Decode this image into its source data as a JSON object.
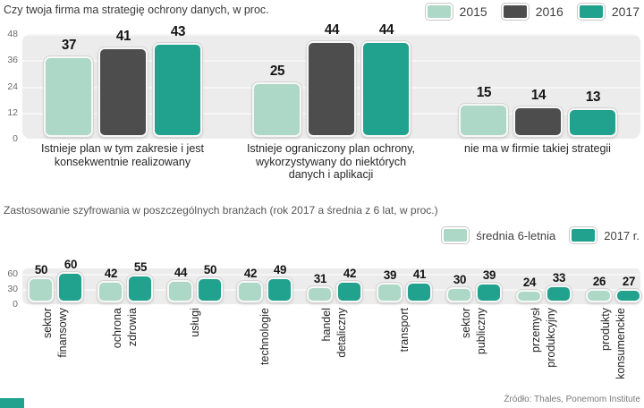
{
  "page": {
    "source": "Źródło: Thales, Ponemom Institute"
  },
  "colors": {
    "series_2015_avg": "#add8c7",
    "series_2016": "#4d4d4d",
    "series_2017": "#21a28e",
    "panel_background": "#ececec",
    "brand_mark": "#21a28e"
  },
  "chart_data": [
    {
      "type": "bar",
      "title": "Czy twoja firma ma strategię ochrony danych, w proc.",
      "categories": [
        "Istnieje plan w tym zakresie i jest\nkonsekwentnie realizowany",
        "Istnieje ograniczony plan ochrony,\nwykorzystywany do niektórych\ndanych i aplikacji",
        "nie ma w firmie takiej strategii"
      ],
      "series": [
        {
          "name": "2015",
          "color": "#add8c7",
          "values": [
            37,
            25,
            15
          ]
        },
        {
          "name": "2016",
          "color": "#4d4d4d",
          "values": [
            41,
            44,
            14
          ]
        },
        {
          "name": "2017",
          "color": "#21a28e",
          "values": [
            43,
            44,
            13
          ]
        }
      ],
      "ylim": [
        0,
        48
      ],
      "yticks": [
        0,
        12,
        24,
        36,
        48
      ],
      "legend_position": "top-right",
      "grid": true
    },
    {
      "type": "bar",
      "title": "Zastosowanie szyfrowania w poszczególnych branżach (rok 2017 a średnia z 6 lat, w proc.)",
      "categories": [
        "sektor\nfinansowy",
        "ochrona\nzdrowia",
        "usługi",
        "technologie",
        "handel\ndetaliczny",
        "transport",
        "sektor\npubliczny",
        "przemysł\nprodukcyjny",
        "produkty\nkonsumenckie"
      ],
      "series": [
        {
          "name": "średnia 6-letnia",
          "color": "#add8c7",
          "values": [
            50,
            42,
            44,
            42,
            31,
            39,
            30,
            24,
            26
          ]
        },
        {
          "name": "2017 r.",
          "color": "#21a28e",
          "values": [
            60,
            55,
            50,
            49,
            42,
            41,
            39,
            33,
            27
          ]
        }
      ],
      "ylim": [
        0,
        60
      ],
      "yticks": [
        0,
        30,
        60
      ],
      "legend_position": "top-right",
      "grid": true
    }
  ]
}
